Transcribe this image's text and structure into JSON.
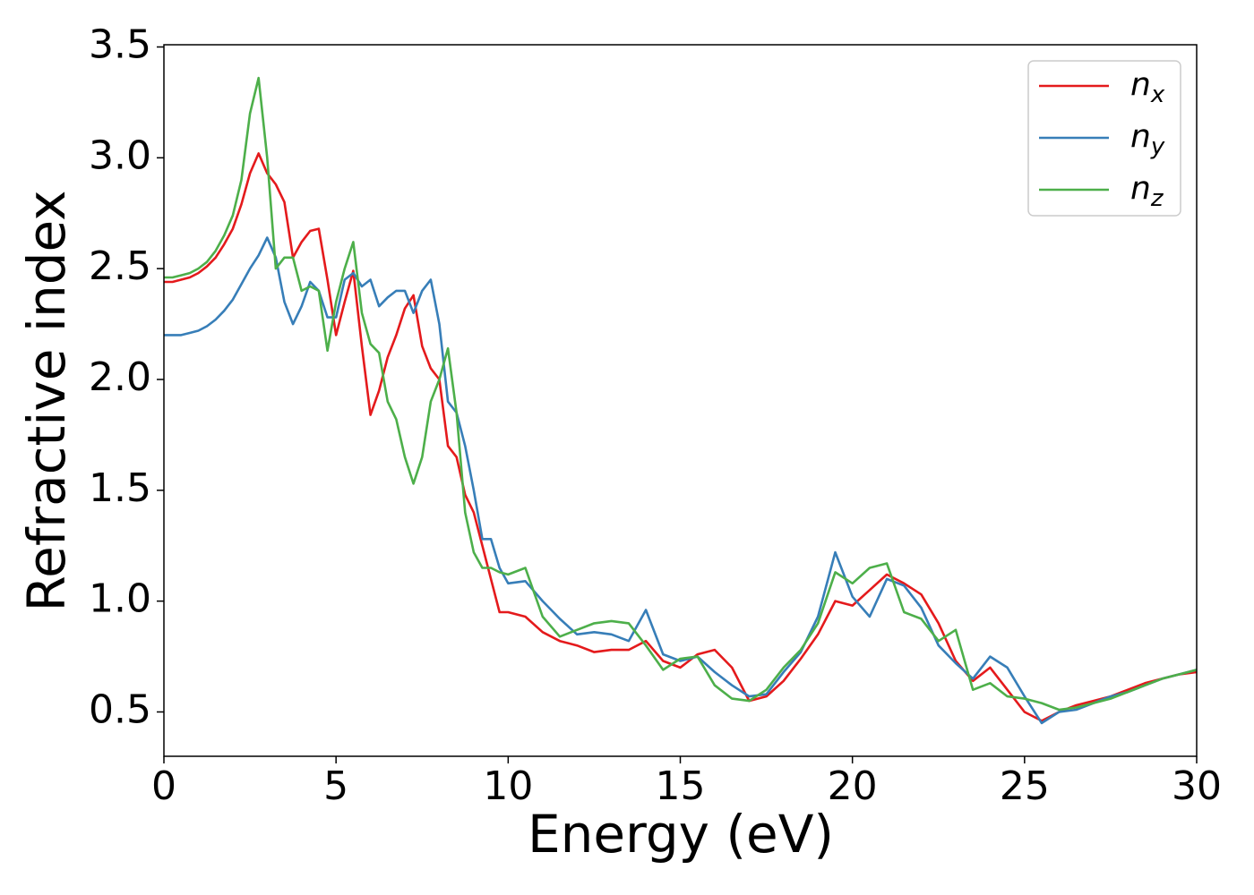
{
  "chart_data": {
    "type": "line",
    "xlabel": "Energy (eV)",
    "ylabel": "Refractive index",
    "x": [
      0,
      0.25,
      0.5,
      0.75,
      1,
      1.25,
      1.5,
      1.75,
      2,
      2.25,
      2.5,
      2.75,
      3,
      3.25,
      3.5,
      3.75,
      4,
      4.25,
      4.5,
      4.75,
      5,
      5.25,
      5.5,
      5.75,
      6,
      6.25,
      6.5,
      6.75,
      7,
      7.25,
      7.5,
      7.75,
      8,
      8.25,
      8.5,
      8.75,
      9,
      9.25,
      9.5,
      9.75,
      10,
      10.5,
      11,
      11.5,
      12,
      12.5,
      13,
      13.5,
      14,
      14.5,
      15,
      15.5,
      16,
      16.5,
      17,
      17.5,
      18,
      18.5,
      19,
      19.5,
      20,
      20.5,
      21,
      21.5,
      22,
      22.5,
      23,
      23.5,
      24,
      24.5,
      25,
      25.5,
      26,
      26.5,
      27,
      27.5,
      28,
      28.5,
      29,
      29.5,
      30
    ],
    "series": [
      {
        "name": "nx",
        "color": "#e41a1c",
        "values": [
          2.44,
          2.44,
          2.45,
          2.46,
          2.48,
          2.51,
          2.55,
          2.61,
          2.68,
          2.79,
          2.93,
          3.02,
          2.93,
          2.88,
          2.8,
          2.55,
          2.62,
          2.67,
          2.68,
          2.45,
          2.2,
          2.35,
          2.49,
          2.15,
          1.84,
          1.95,
          2.1,
          2.2,
          2.32,
          2.38,
          2.15,
          2.05,
          2.0,
          1.7,
          1.65,
          1.48,
          1.4,
          1.25,
          1.1,
          0.95,
          0.95,
          0.93,
          0.86,
          0.82,
          0.8,
          0.77,
          0.78,
          0.78,
          0.82,
          0.73,
          0.7,
          0.76,
          0.78,
          0.7,
          0.55,
          0.57,
          0.64,
          0.74,
          0.85,
          1.0,
          0.98,
          1.05,
          1.12,
          1.08,
          1.03,
          0.9,
          0.73,
          0.64,
          0.7,
          0.6,
          0.5,
          0.46,
          0.5,
          0.53,
          0.55,
          0.57,
          0.6,
          0.63,
          0.65,
          0.67,
          0.68
        ]
      },
      {
        "name": "ny",
        "color": "#377eb8",
        "values": [
          2.2,
          2.2,
          2.2,
          2.21,
          2.22,
          2.24,
          2.27,
          2.31,
          2.36,
          2.43,
          2.5,
          2.56,
          2.64,
          2.55,
          2.35,
          2.25,
          2.33,
          2.44,
          2.4,
          2.28,
          2.28,
          2.45,
          2.48,
          2.42,
          2.45,
          2.33,
          2.37,
          2.4,
          2.4,
          2.3,
          2.4,
          2.45,
          2.25,
          1.9,
          1.85,
          1.7,
          1.5,
          1.28,
          1.28,
          1.15,
          1.08,
          1.09,
          1.0,
          0.92,
          0.85,
          0.86,
          0.85,
          0.82,
          0.96,
          0.76,
          0.73,
          0.75,
          0.68,
          0.62,
          0.57,
          0.58,
          0.68,
          0.77,
          0.93,
          1.22,
          1.02,
          0.93,
          1.1,
          1.07,
          0.97,
          0.8,
          0.72,
          0.65,
          0.75,
          0.7,
          0.57,
          0.45,
          0.5,
          0.51,
          0.54,
          0.57,
          0.59,
          0.62,
          0.65,
          0.67,
          0.69
        ]
      },
      {
        "name": "nz",
        "color": "#4daf4a",
        "values": [
          2.46,
          2.46,
          2.47,
          2.48,
          2.5,
          2.53,
          2.58,
          2.65,
          2.74,
          2.9,
          3.2,
          3.36,
          3.0,
          2.5,
          2.55,
          2.55,
          2.4,
          2.42,
          2.4,
          2.13,
          2.35,
          2.5,
          2.62,
          2.3,
          2.16,
          2.12,
          1.9,
          1.82,
          1.65,
          1.53,
          1.65,
          1.9,
          2.0,
          2.14,
          1.85,
          1.4,
          1.22,
          1.15,
          1.15,
          1.13,
          1.12,
          1.15,
          0.93,
          0.84,
          0.87,
          0.9,
          0.91,
          0.9,
          0.8,
          0.69,
          0.74,
          0.75,
          0.62,
          0.56,
          0.55,
          0.6,
          0.7,
          0.78,
          0.9,
          1.13,
          1.08,
          1.15,
          1.17,
          0.95,
          0.92,
          0.82,
          0.87,
          0.6,
          0.63,
          0.57,
          0.56,
          0.54,
          0.51,
          0.52,
          0.54,
          0.56,
          0.59,
          0.62,
          0.65,
          0.67,
          0.69
        ]
      }
    ],
    "xlim": [
      0,
      30
    ],
    "xticks": [
      0,
      5,
      10,
      15,
      20,
      25,
      30
    ],
    "ylim": [
      0.3,
      3.51
    ],
    "yticks": [
      0.5,
      {
        "value": 1.0,
        "label": "1.0"
      },
      1.5,
      {
        "value": 2.0,
        "label": "2.0"
      },
      2.5,
      {
        "value": 3.0,
        "label": "3.0"
      },
      3.5
    ],
    "legend": "upper right"
  }
}
